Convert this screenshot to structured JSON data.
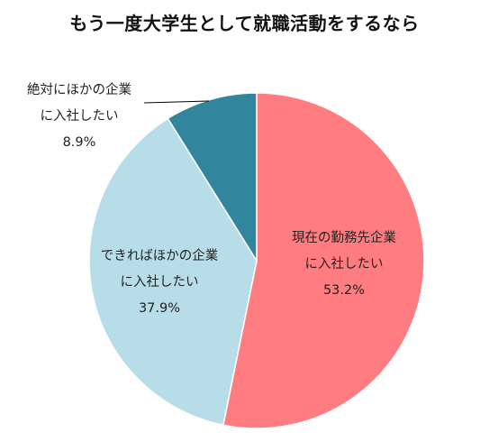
{
  "chart_data": {
    "type": "pie",
    "title": "もう一度大学生として就職活動をするなら",
    "slices": [
      {
        "label_lines": [
          "現在の勤務先企業",
          "に入社したい"
        ],
        "value": 53.2,
        "value_label": "53.2%",
        "color": "#FF7C80"
      },
      {
        "label_lines": [
          "できればほかの企業",
          "に入社したい"
        ],
        "value": 37.9,
        "value_label": "37.9%",
        "color": "#B7DDE8"
      },
      {
        "label_lines": [
          "絶対にほかの企業",
          "に入社したい"
        ],
        "value": 8.9,
        "value_label": "8.9%",
        "color": "#31859C"
      }
    ],
    "start_angle_deg": 0,
    "direction": "clockwise",
    "legend": "none"
  }
}
